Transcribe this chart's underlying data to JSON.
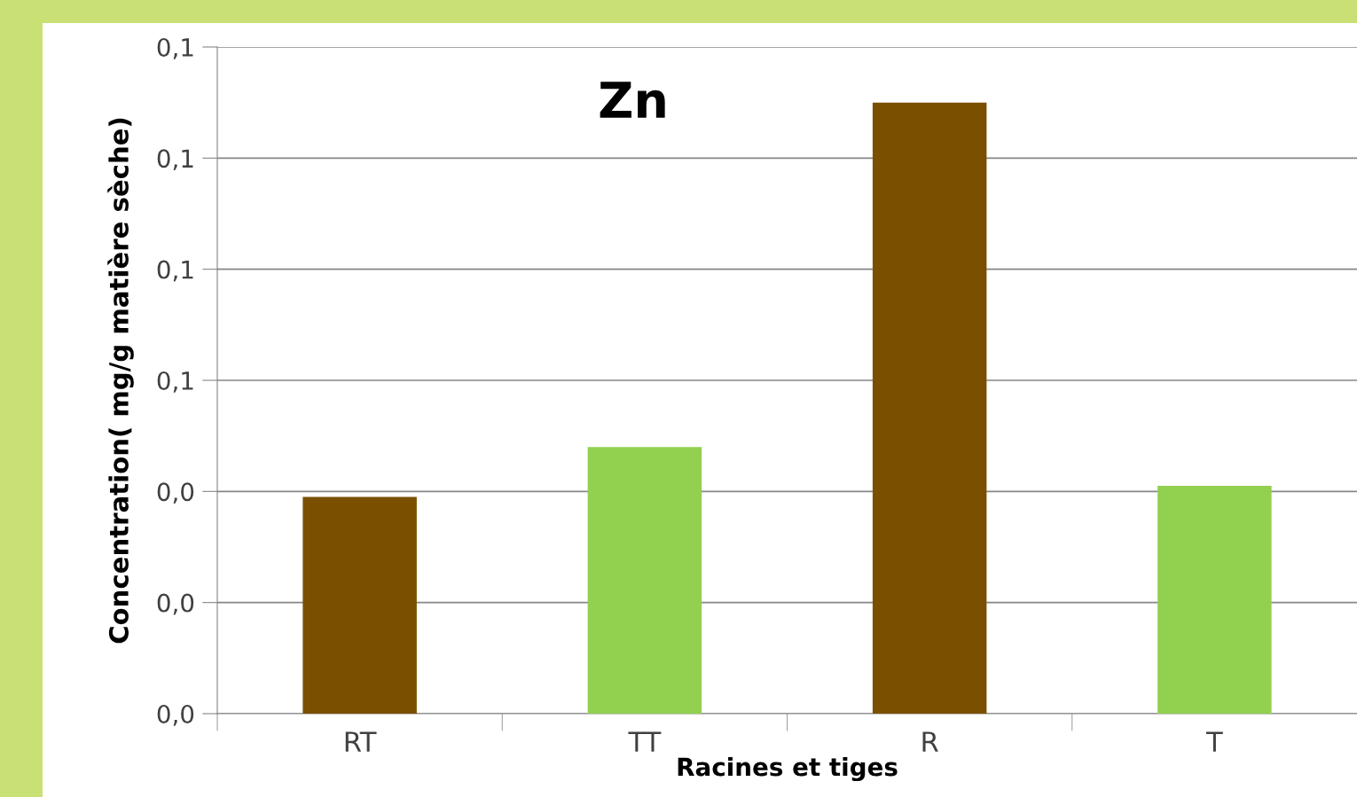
{
  "chart_data": {
    "type": "bar",
    "title": "Zn",
    "xlabel": "Racines et tiges",
    "ylabel": "Concentration( mg/g matière sèche)",
    "categories": [
      "RT",
      "TT",
      "R",
      "T"
    ],
    "values": [
      0.039,
      0.048,
      0.11,
      0.041
    ],
    "colors": [
      "#7a5000",
      "#92d050",
      "#7a5000",
      "#92d050"
    ],
    "ylim": [
      0,
      0.12
    ],
    "yticks": [
      {
        "value": 0,
        "label": "0,0"
      },
      {
        "value": 0.02,
        "label": "0,0"
      },
      {
        "value": 0.04,
        "label": "0,0"
      },
      {
        "value": 0.06,
        "label": "0,1"
      },
      {
        "value": 0.08,
        "label": "0,1"
      },
      {
        "value": 0.1,
        "label": "0,1"
      },
      {
        "value": 0.12,
        "label": "0,1"
      }
    ],
    "grid": "y",
    "legend": false
  }
}
